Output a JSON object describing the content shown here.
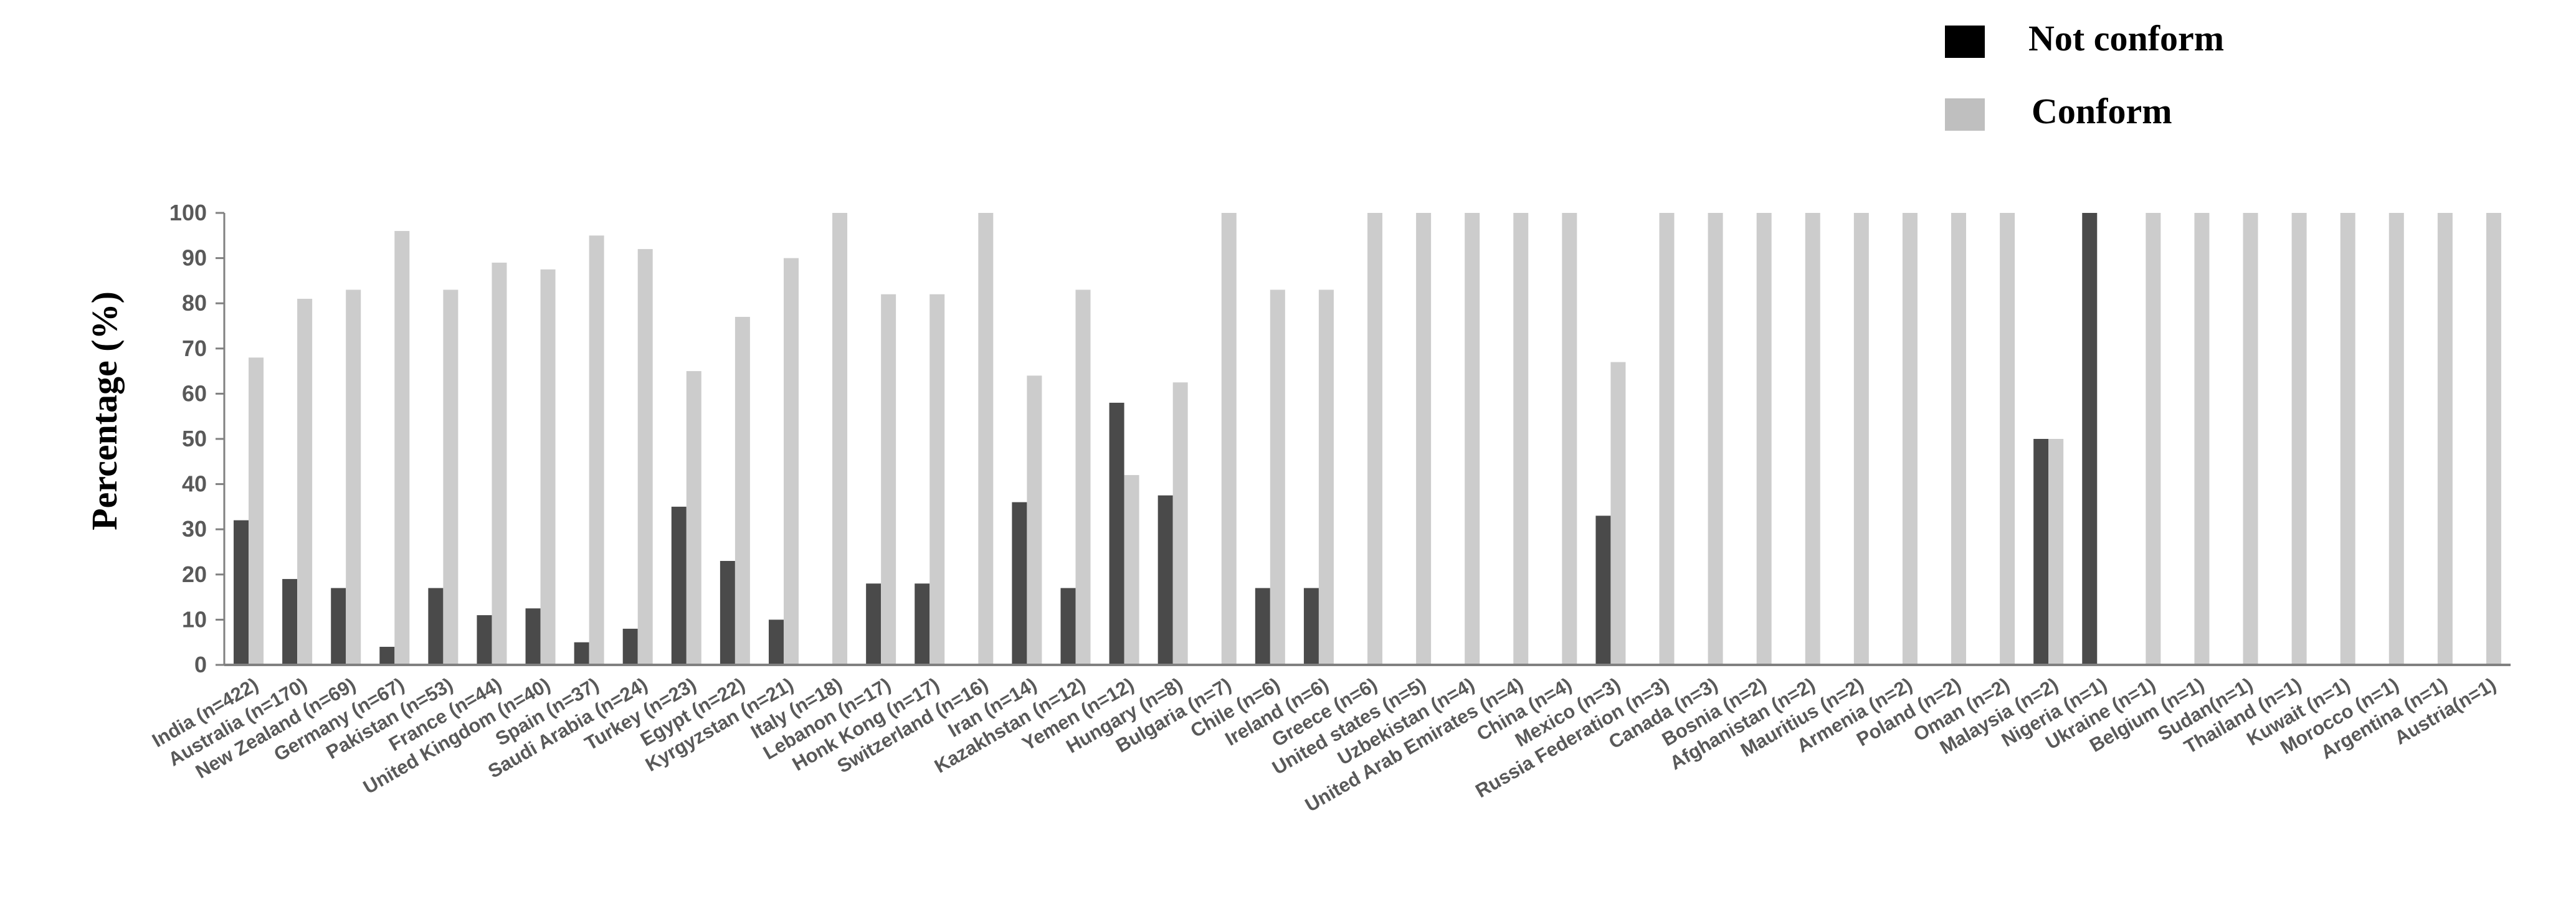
{
  "chart_data": {
    "type": "bar",
    "title": "",
    "xlabel": "",
    "ylabel": "Percentage (%)",
    "ylim": [
      0,
      100
    ],
    "yticks": [
      0,
      10,
      20,
      30,
      40,
      50,
      60,
      70,
      80,
      90,
      100
    ],
    "grid": false,
    "legend_position": "top-right",
    "categories": [
      "India (n=422)",
      "Australia (n=170)",
      "New Zealand (n=69)",
      "Germany (n=67)",
      "Pakistan (n=53)",
      "France (n=44)",
      "United Kingdom (n=40)",
      "Spain (n=37)",
      "Saudi Arabia (n=24)",
      "Turkey (n=23)",
      "Egypt (n=22)",
      "Kyrgyzstan (n=21)",
      "Italy (n=18)",
      "Lebanon (n=17)",
      "Honk Kong (n=17)",
      "Switzerland (n=16)",
      "Iran (n=14)",
      "Kazakhstan (n=12)",
      "Yemen (n=12)",
      "Hungary (n=8)",
      "Bulgaria (n=7)",
      "Chile (n=6)",
      "Ireland (n=6)",
      "Greece (n=6)",
      "United states (n=5)",
      "Uzbekistan (n=4)",
      "United Arab Emirates (n=4)",
      "China (n=4)",
      "Mexico (n=3)",
      "Russia Federation (n=3)",
      "Canada (n=3)",
      "Bosnia (n=2)",
      "Afghanistan (n=2)",
      "Mauritius (n=2)",
      "Armenia (n=2)",
      "Poland (n=2)",
      "Oman (n=2)",
      "Malaysia (n=2)",
      "Nigeria (n=1)",
      "Ukraine (n=1)",
      "Belgium (n=1)",
      "Sudan(n=1)",
      "Thailand (n=1)",
      "Kuwait (n=1)",
      "Morocco (n=1)",
      "Argentina (n=1)",
      "Austria(n=1)"
    ],
    "series": [
      {
        "name": "Not conform",
        "color": "#4a4a4a",
        "values": [
          32,
          19,
          17,
          4,
          17,
          11,
          12.5,
          5,
          8,
          35,
          23,
          10,
          0,
          18,
          18,
          0,
          36,
          17,
          58,
          37.5,
          0,
          17,
          17,
          0,
          0,
          0,
          0,
          0,
          33,
          0,
          0,
          0,
          0,
          0,
          0,
          0,
          0,
          50,
          100,
          0,
          0,
          0,
          0,
          0,
          0,
          0,
          0
        ]
      },
      {
        "name": "Conform",
        "color": "#cccccc",
        "values": [
          68,
          81,
          83,
          96,
          83,
          89,
          87.5,
          95,
          92,
          65,
          77,
          90,
          100,
          82,
          82,
          100,
          64,
          83,
          42,
          62.5,
          100,
          83,
          83,
          100,
          100,
          100,
          100,
          100,
          67,
          100,
          100,
          100,
          100,
          100,
          100,
          100,
          100,
          50,
          0,
          100,
          100,
          100,
          100,
          100,
          100,
          100,
          100
        ]
      }
    ],
    "legend": [
      {
        "label": "Not conform",
        "swatch_color": "#000000"
      },
      {
        "label": "Conform",
        "swatch_color": "#bfbfbf"
      }
    ],
    "axis_color": "#808080",
    "tick_text_color": "#595959"
  }
}
